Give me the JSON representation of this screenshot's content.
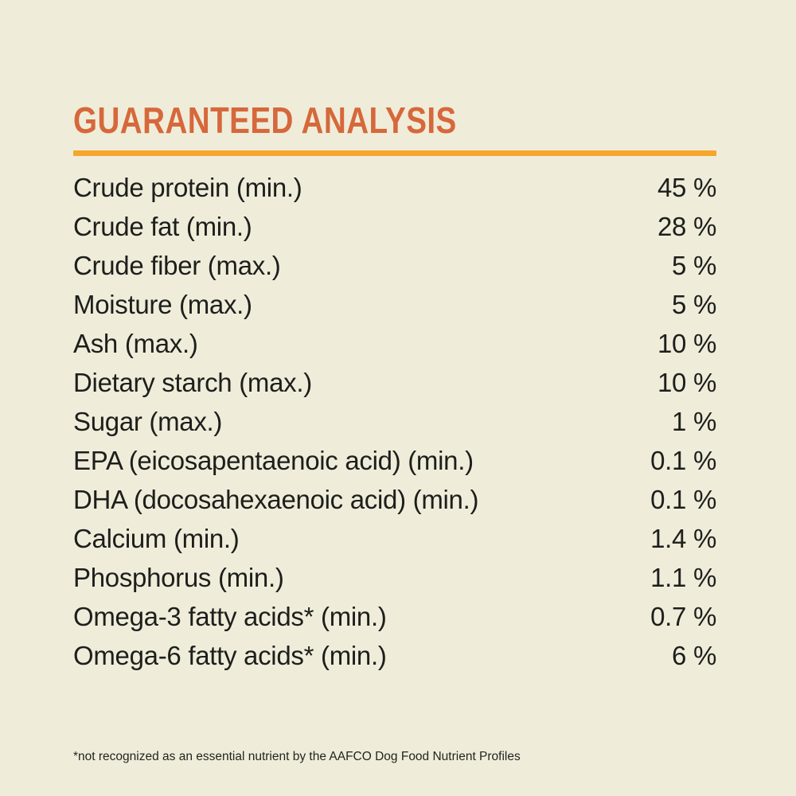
{
  "page": {
    "title": "GUARANTEED ANALYSIS",
    "footnote": "*not recognized as an essential nutrient by the AAFCO Dog Food Nutrient Profiles"
  },
  "colors": {
    "background": "#EFEDDA",
    "title_orange": "#D6683B",
    "rule_amber": "#F5A62B",
    "text": "#1E1E1C"
  },
  "analysis": {
    "rows": [
      {
        "label": "Crude protein (min.)",
        "value": "45 %"
      },
      {
        "label": "Crude fat (min.)",
        "value": "28 %"
      },
      {
        "label": "Crude fiber (max.)",
        "value": "5 %"
      },
      {
        "label": "Moisture (max.)",
        "value": "5 %"
      },
      {
        "label": "Ash (max.)",
        "value": "10 %"
      },
      {
        "label": "Dietary starch (max.)",
        "value": "10 %"
      },
      {
        "label": "Sugar (max.)",
        "value": "1 %"
      },
      {
        "label": "EPA (eicosapentaenoic acid) (min.)",
        "value": "0.1 %"
      },
      {
        "label": "DHA (docosahexaenoic acid) (min.)",
        "value": "0.1 %"
      },
      {
        "label": "Calcium (min.)",
        "value": "1.4 %"
      },
      {
        "label": "Phosphorus (min.)",
        "value": "1.1 %"
      },
      {
        "label": "Omega-3 fatty acids* (min.)",
        "value": "0.7 %"
      },
      {
        "label": "Omega-6 fatty acids* (min.)",
        "value": "6 %"
      }
    ]
  }
}
